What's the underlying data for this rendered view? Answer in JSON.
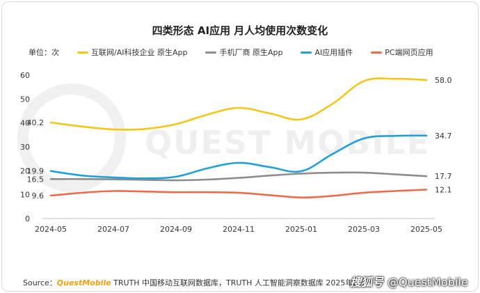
{
  "chart_data": {
    "type": "line",
    "title": "四类形态 AI应用 月人均使用次数变化",
    "unit_label": "单位：次",
    "x": [
      "2024-05",
      "2024-06",
      "2024-07",
      "2024-08",
      "2024-09",
      "2024-10",
      "2024-11",
      "2024-12",
      "2025-01",
      "2025-02",
      "2025-03",
      "2025-04",
      "2025-05"
    ],
    "x_tick_labels": [
      "2024-05",
      "2024-07",
      "2024-09",
      "2024-11",
      "2025-01",
      "2025-03",
      "2025-05"
    ],
    "ylim": [
      0,
      60
    ],
    "yticks": [
      0,
      10,
      20,
      30,
      40,
      50,
      60
    ],
    "grid": false,
    "legend_position": "top",
    "series": [
      {
        "name": "互联网/AI科技企业 原生App",
        "color": "#f5c518",
        "values": [
          40.2,
          38.5,
          37.3,
          37.5,
          39.5,
          43.5,
          46.3,
          44.0,
          41.5,
          48.0,
          57.5,
          58.5,
          58.0
        ],
        "start_label": "40.2",
        "end_label": "58.0"
      },
      {
        "name": "手机厂商 原生App",
        "color": "#8c8c8c",
        "values": [
          16.5,
          16.5,
          16.4,
          16.2,
          16.0,
          16.3,
          17.0,
          18.0,
          18.8,
          19.2,
          19.2,
          18.5,
          17.7
        ],
        "start_label": "16.5",
        "end_label": "17.7"
      },
      {
        "name": "AI应用插件",
        "color": "#1fa0d8",
        "values": [
          19.9,
          18.0,
          17.2,
          16.8,
          17.5,
          21.0,
          23.3,
          21.5,
          19.8,
          27.0,
          33.5,
          34.6,
          34.7
        ],
        "start_label": "19.9",
        "end_label": "34.7"
      },
      {
        "name": "PC端网页应用",
        "color": "#ec6b4a",
        "values": [
          9.6,
          10.8,
          11.5,
          11.3,
          11.0,
          11.0,
          10.8,
          9.8,
          8.8,
          9.5,
          10.8,
          11.5,
          12.1
        ],
        "start_label": "9.6",
        "end_label": "12.1"
      }
    ],
    "watermark": "QUEST MOBILE"
  },
  "source": {
    "prefix": "Source：",
    "brand": "QuestMobile",
    "text": " TRUTH 中国移动互联网数据库，TRUTH 人工智能洞察数据库 2025年5",
    "badge": "@QuestMobile",
    "badge_icon": "搜狐号"
  }
}
